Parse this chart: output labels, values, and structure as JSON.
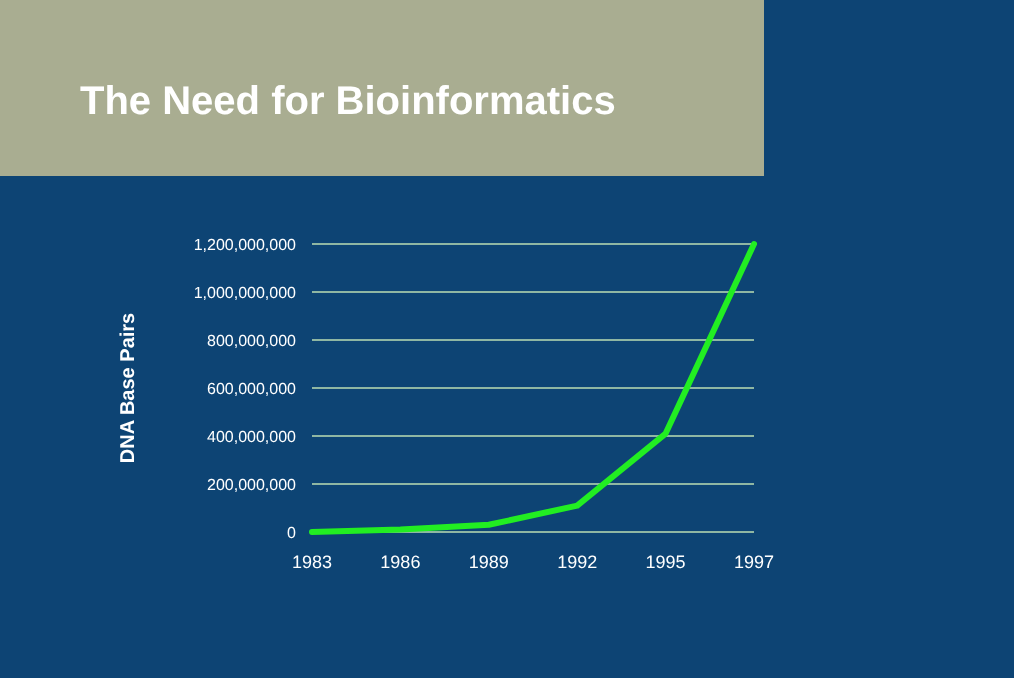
{
  "chart_data": {
    "type": "line",
    "title": "The Need for Bioinformatics",
    "ylabel": "DNA Base Pairs",
    "categories": [
      "1983",
      "1986",
      "1989",
      "1992",
      "1995",
      "1997"
    ],
    "series": [
      {
        "color": "#22ee22",
        "values": [
          0,
          10000000,
          30000000,
          110000000,
          410000000,
          1200000000
        ]
      }
    ],
    "ylim": [
      0,
      1200000000
    ],
    "yticks": [
      {
        "value": 0,
        "label": "0"
      },
      {
        "value": 200000000,
        "label": "200,000,000"
      },
      {
        "value": 400000000,
        "label": "400,000,000"
      },
      {
        "value": 600000000,
        "label": "600,000,000"
      },
      {
        "value": 800000000,
        "label": "800,000,000"
      },
      {
        "value": 1000000000,
        "label": "1,000,000,000"
      },
      {
        "value": 1200000000,
        "label": "1,200,000,000"
      }
    ],
    "grid": "y",
    "marker": "none",
    "line_style": "solid"
  }
}
